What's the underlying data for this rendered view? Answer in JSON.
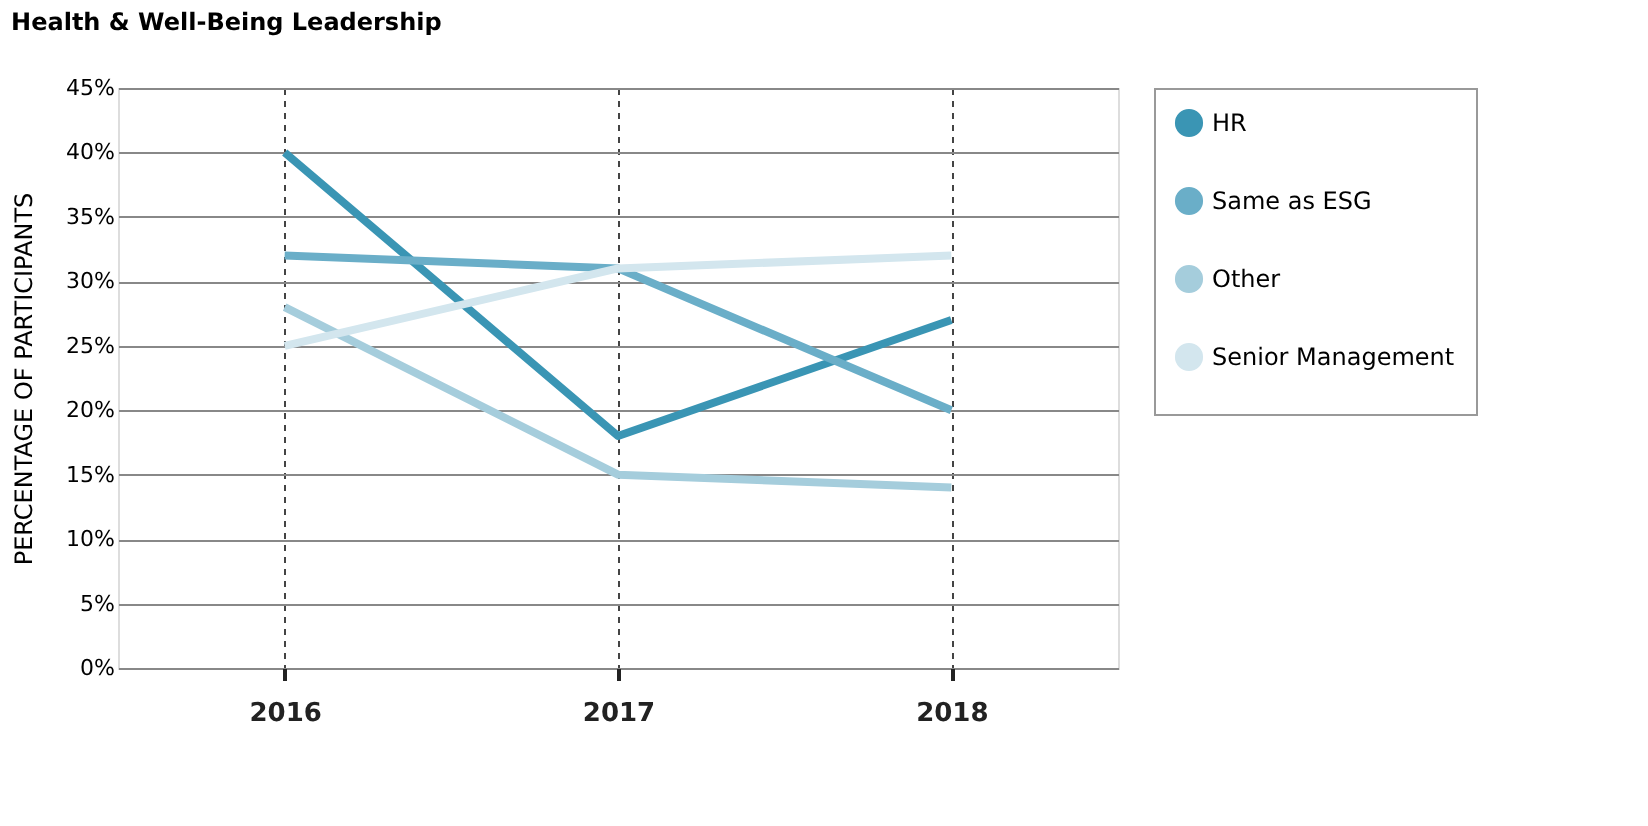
{
  "chart_data": {
    "type": "line",
    "title": "Health & Well-Being Leadership",
    "ylabel": "PERCENTAGE OF PARTICIPANTS",
    "categories": [
      "2016",
      "2017",
      "2018"
    ],
    "series": [
      {
        "name": "HR",
        "color": "#3a95b4",
        "values": [
          40,
          18,
          27
        ]
      },
      {
        "name": "Same as ESG",
        "color": "#6aaec8",
        "values": [
          32,
          31,
          20
        ]
      },
      {
        "name": "Other",
        "color": "#a5cddc",
        "values": [
          28,
          15,
          14
        ]
      },
      {
        "name": "Senior Management",
        "color": "#d3e6ee",
        "values": [
          25,
          31,
          32
        ]
      }
    ],
    "ylim": [
      0,
      45
    ],
    "yticks": [
      {
        "value": 0,
        "label": "0%"
      },
      {
        "value": 5,
        "label": "5%"
      },
      {
        "value": 10,
        "label": "10%"
      },
      {
        "value": 15,
        "label": "15%"
      },
      {
        "value": 20,
        "label": "20%"
      },
      {
        "value": 25,
        "label": "25%"
      },
      {
        "value": 30,
        "label": "30%"
      },
      {
        "value": 35,
        "label": "35%"
      },
      {
        "value": 40,
        "label": "40%"
      },
      {
        "value": 45,
        "label": "45%"
      }
    ],
    "grid": true,
    "legend": "top right",
    "marker": "none",
    "line_style": "solid"
  }
}
